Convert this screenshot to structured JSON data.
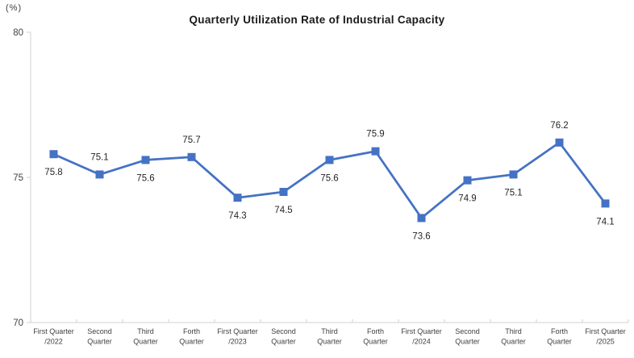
{
  "chart_data": {
    "type": "line",
    "title": "Quarterly Utilization Rate of Industrial Capacity",
    "unit_label": "(%)",
    "categories": [
      [
        "First Quarter",
        "/2022"
      ],
      [
        "Second",
        "Quarter"
      ],
      [
        "Third",
        "Quarter"
      ],
      [
        "Forth",
        "Quarter"
      ],
      [
        "First Quarter",
        "/2023"
      ],
      [
        "Second",
        "Quarter"
      ],
      [
        "Third",
        "Quarter"
      ],
      [
        "Forth",
        "Quarter"
      ],
      [
        "First Quarter",
        "/2024"
      ],
      [
        "Second",
        "Quarter"
      ],
      [
        "Third",
        "Quarter"
      ],
      [
        "Forth",
        "Quarter"
      ],
      [
        "First Quarter",
        "/2025"
      ]
    ],
    "values": [
      75.8,
      75.1,
      75.6,
      75.7,
      74.3,
      74.5,
      75.6,
      75.9,
      73.6,
      74.9,
      75.1,
      76.2,
      74.1
    ],
    "data_label_positions": [
      "below",
      "above",
      "below",
      "above",
      "below",
      "below",
      "below",
      "above",
      "below",
      "below",
      "below",
      "above",
      "below"
    ],
    "ylim": [
      70,
      80
    ],
    "yticks": [
      80,
      75,
      70
    ],
    "grid": false,
    "legend": "none",
    "colors": {
      "line": "#4472C4",
      "marker": "#4472C4",
      "axis": "#D9D9D9",
      "tick_text": "#404040",
      "data_label": "#262626",
      "title": "#1A1A1A"
    }
  }
}
